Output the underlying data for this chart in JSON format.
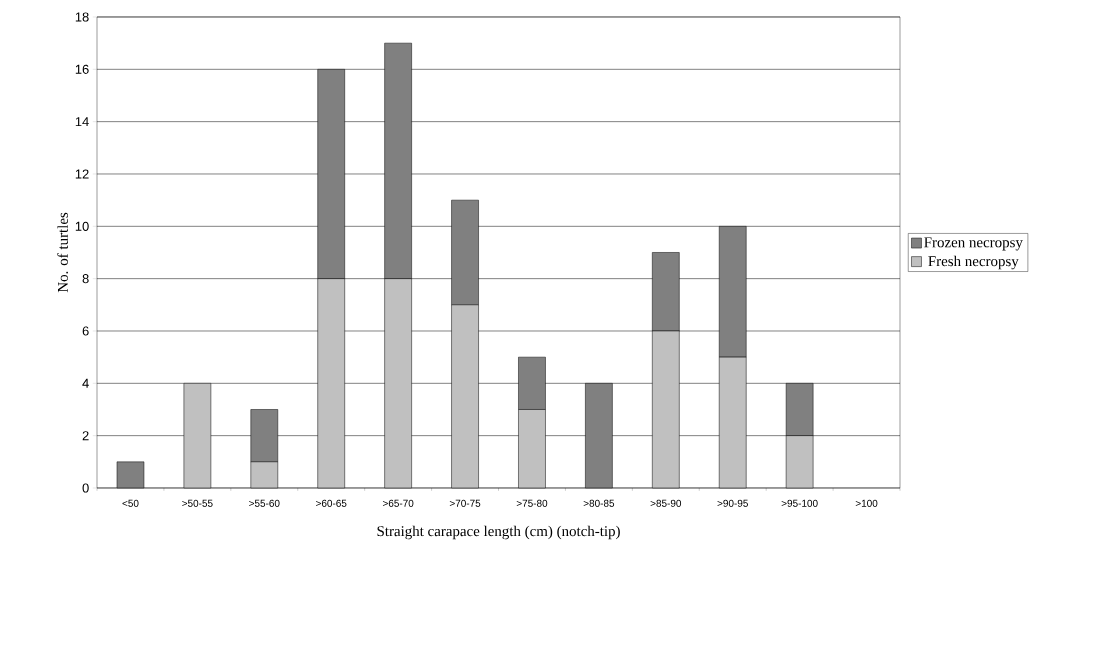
{
  "chart_data": {
    "type": "bar",
    "stacked": true,
    "xlabel": "Straight carapace length (cm) (notch-tip)",
    "ylabel": "No. of turtles",
    "categories": [
      "<50",
      ">50-55",
      ">55-60",
      ">60-65",
      ">65-70",
      ">70-75",
      ">75-80",
      ">80-85",
      ">85-90",
      ">90-95",
      ">95-100",
      ">100"
    ],
    "series": [
      {
        "name": "Fresh necropsy",
        "color": "#c0c0c0",
        "values": [
          0,
          4,
          1,
          8,
          8,
          7,
          3,
          0,
          6,
          5,
          2,
          0
        ]
      },
      {
        "name": "Frozen necropsy",
        "color": "#808080",
        "values": [
          1,
          0,
          2,
          8,
          9,
          4,
          2,
          4,
          3,
          5,
          2,
          0
        ]
      }
    ],
    "ylim": [
      0,
      18
    ],
    "yticks": [
      0,
      2,
      4,
      6,
      8,
      10,
      12,
      14,
      16,
      18
    ],
    "grid": "y",
    "legend": "right"
  }
}
